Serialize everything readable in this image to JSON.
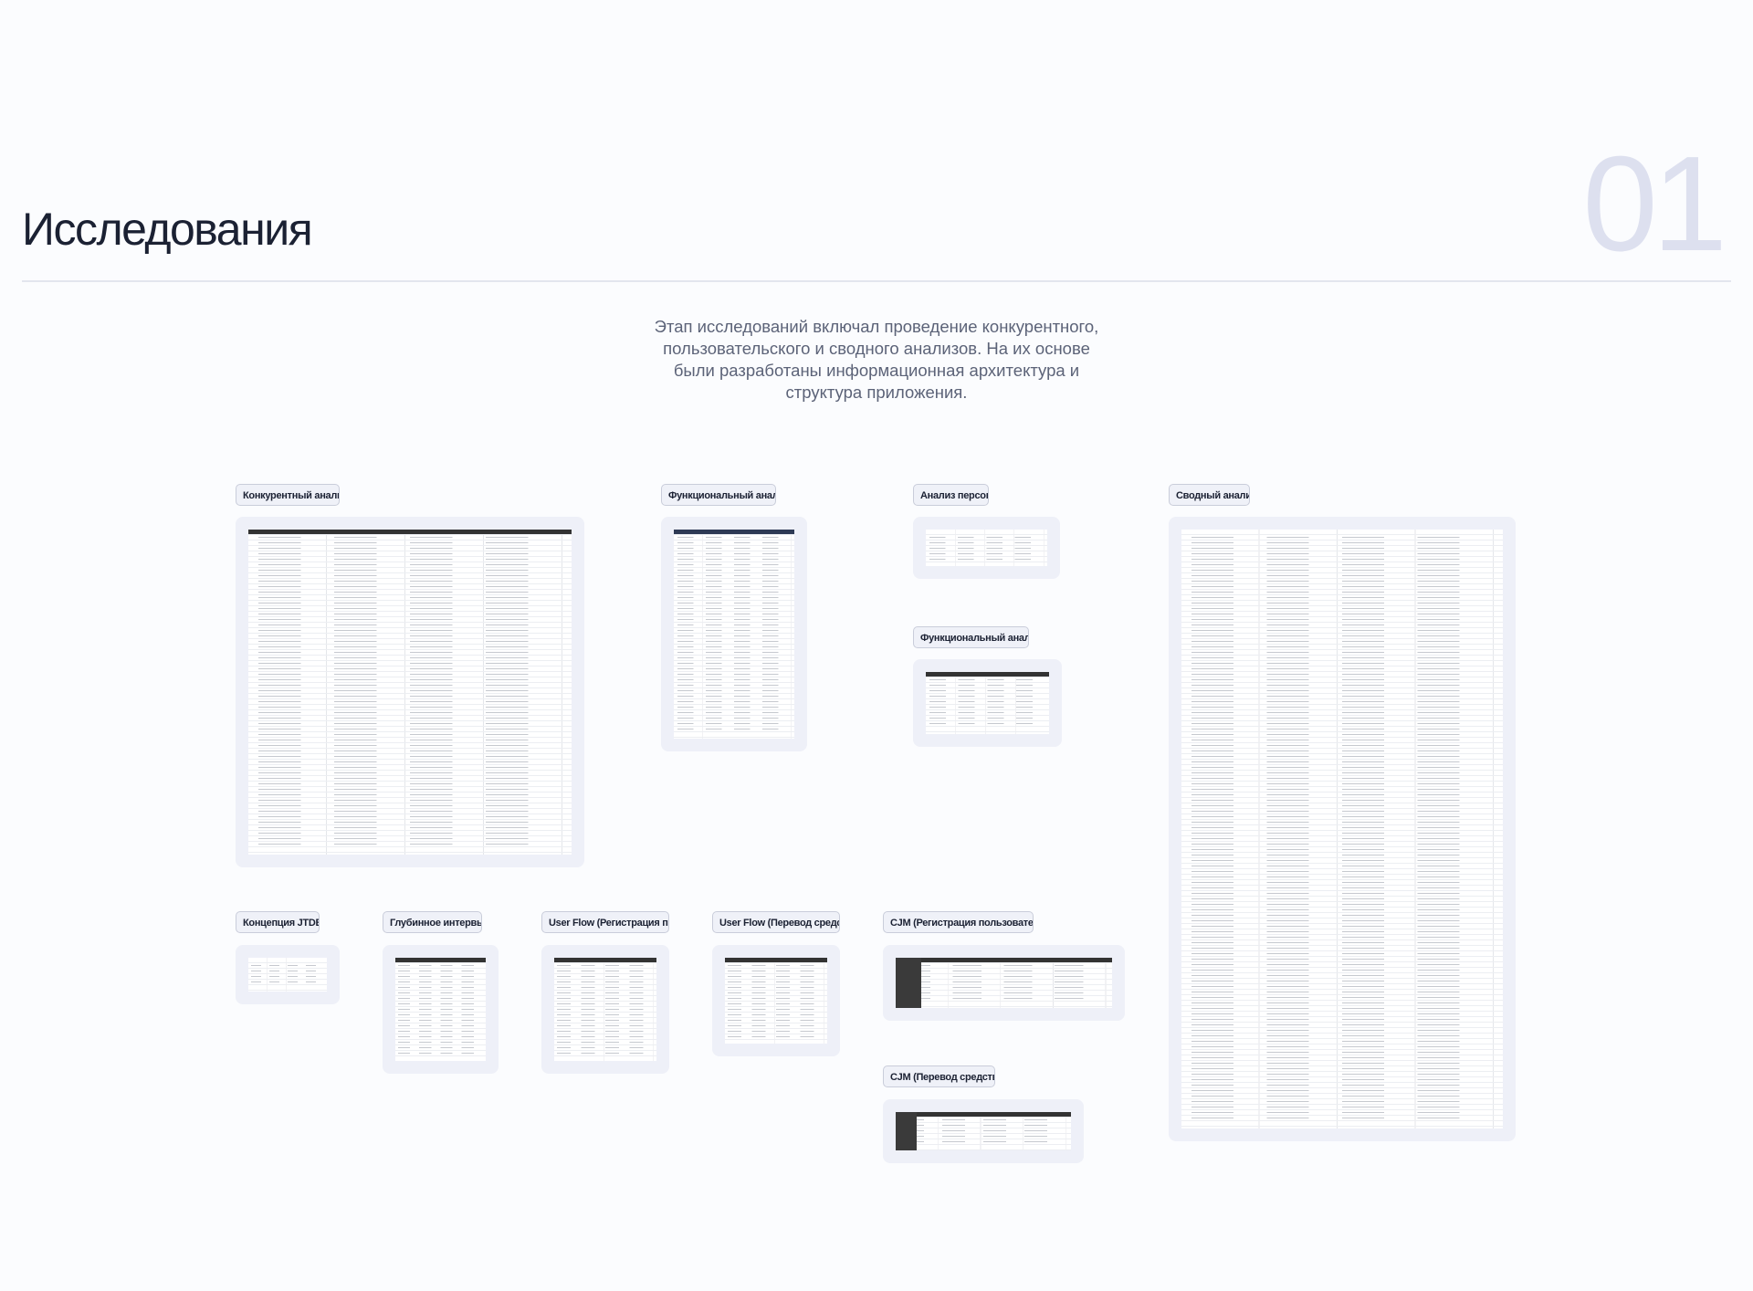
{
  "header": {
    "title": "Исследования",
    "section_number": "01"
  },
  "intro": "Этап исследований включал проведение конкурентного, пользовательского и сводного анализов. На их основе были разработаны информационная архитектура и структура приложения.",
  "artifacts": [
    {
      "label": "Конкурентный анализ"
    },
    {
      "label": "Функциональный анализ"
    },
    {
      "label": "Анализ персон"
    },
    {
      "label": "Функциональный анализ"
    },
    {
      "label": "Сводный анализ"
    },
    {
      "label": "Концепция JTDB"
    },
    {
      "label": "Глубинное интервью"
    },
    {
      "label": "User Flow (Регистрация по..."
    },
    {
      "label": "User Flow (Перевод средс..."
    },
    {
      "label": "CJM (Регистрация пользователя)"
    },
    {
      "label": "CJM (Перевод средств)"
    }
  ],
  "colors": {
    "text": "#1b2133",
    "muted": "#5c6378",
    "card": "#eef0f8",
    "number": "#dde0ef"
  }
}
